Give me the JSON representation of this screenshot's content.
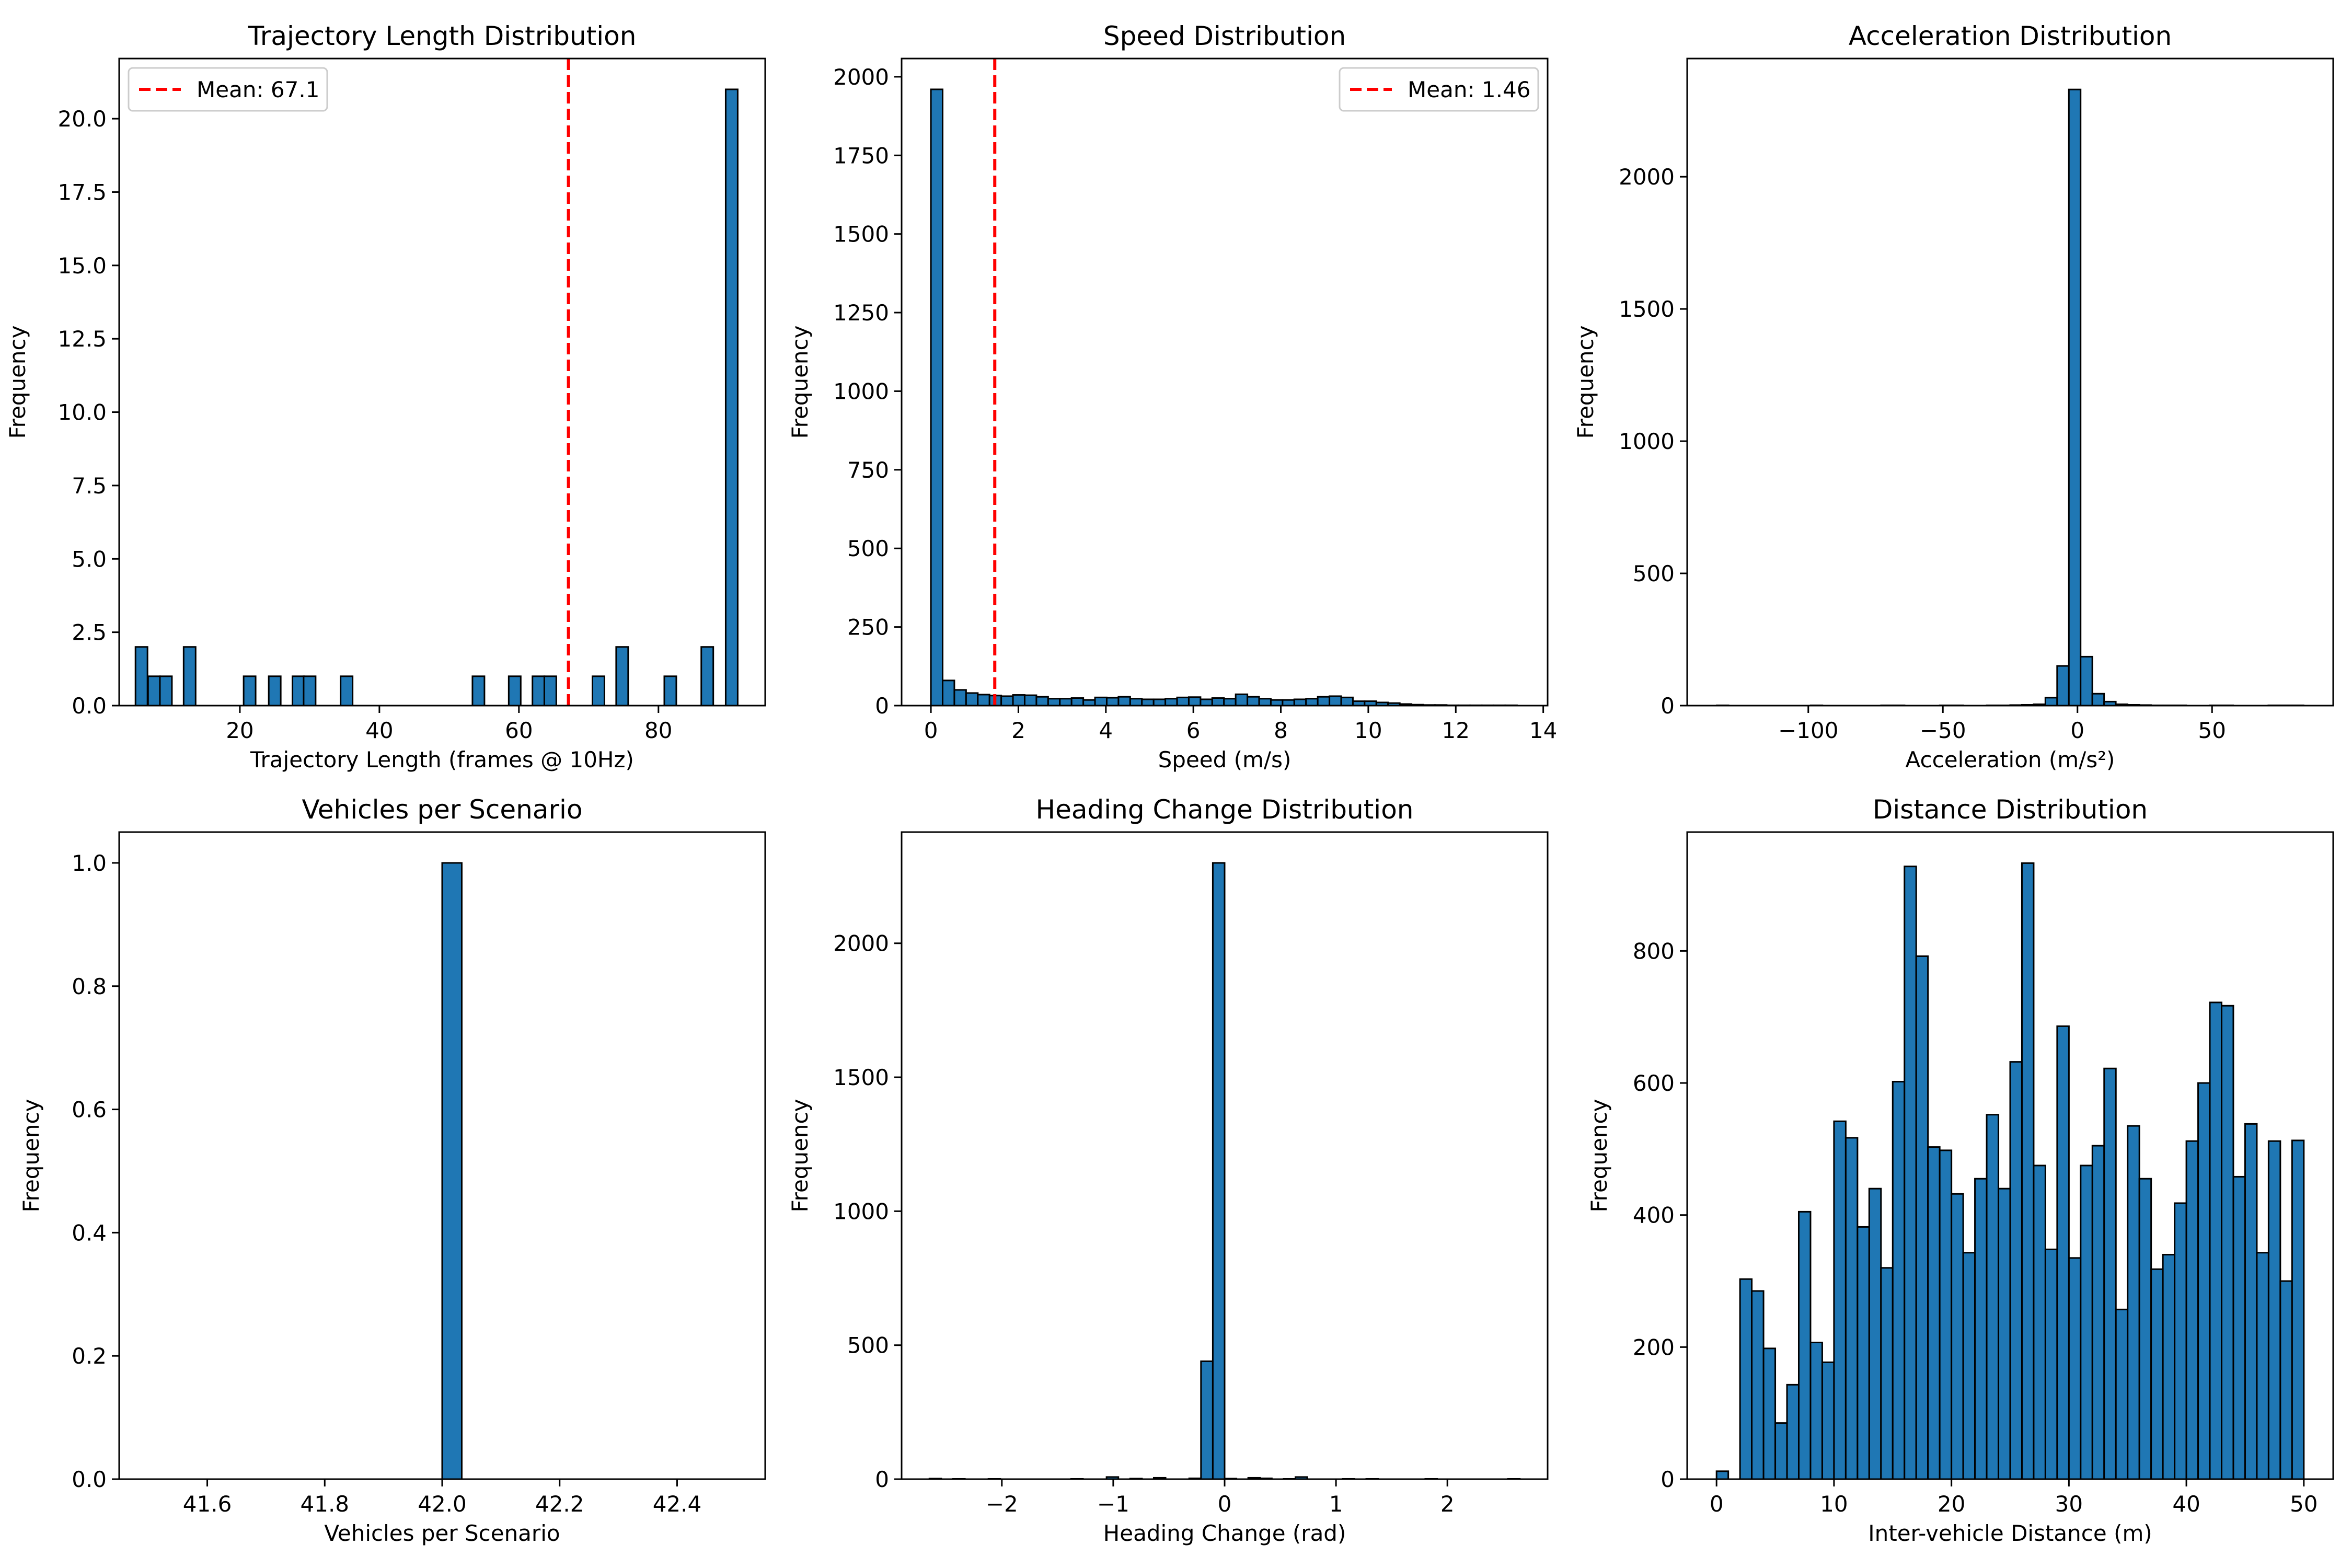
{
  "chart_data": [
    {
      "type": "bar",
      "title": "Trajectory Length Distribution",
      "xlabel": "Trajectory Length (frames @ 10Hz)",
      "ylabel": "Frequency",
      "xlim": [
        2.7,
        95.3
      ],
      "ylim": [
        0,
        22.05
      ],
      "xticks": [
        20,
        40,
        60,
        80
      ],
      "xtick_labels": [
        "20",
        "40",
        "60",
        "80"
      ],
      "yticks": [
        0,
        2.5,
        5,
        7.5,
        10,
        12.5,
        15,
        17.5,
        20
      ],
      "ytick_labels": [
        "0.0",
        "2.5",
        "5.0",
        "7.5",
        "10.0",
        "12.5",
        "15.0",
        "17.5",
        "20.0"
      ],
      "bar_width": 1.72,
      "bins": [
        [
          5.9,
          2
        ],
        [
          7.7,
          1
        ],
        [
          9.4,
          1
        ],
        [
          12.8,
          2
        ],
        [
          21.4,
          1
        ],
        [
          25.0,
          1
        ],
        [
          28.4,
          1
        ],
        [
          30.0,
          1
        ],
        [
          35.3,
          1
        ],
        [
          54.2,
          1
        ],
        [
          59.4,
          1
        ],
        [
          62.8,
          1
        ],
        [
          64.5,
          1
        ],
        [
          71.4,
          1
        ],
        [
          74.8,
          2
        ],
        [
          81.7,
          1
        ],
        [
          87.0,
          2
        ],
        [
          90.5,
          21
        ]
      ],
      "mean_line": {
        "x": 67.1,
        "label": "Mean: 67.1",
        "color": "#ff0000"
      },
      "legend": "top-left",
      "bar_color": "#1f77b4",
      "grid": false
    },
    {
      "type": "bar",
      "title": "Speed Distribution",
      "xlabel": "Speed (m/s)",
      "ylabel": "Frequency",
      "xlim": [
        -0.67,
        14.1
      ],
      "ylim": [
        0,
        2058
      ],
      "xticks": [
        0,
        2,
        4,
        6,
        8,
        10,
        12,
        14
      ],
      "xtick_labels": [
        "0",
        "2",
        "4",
        "6",
        "8",
        "10",
        "12",
        "14"
      ],
      "yticks": [
        0,
        250,
        500,
        750,
        1000,
        1250,
        1500,
        1750,
        2000
      ],
      "ytick_labels": [
        "0",
        "250",
        "500",
        "750",
        "1000",
        "1250",
        "1500",
        "1750",
        "2000"
      ],
      "bar_range": [
        0,
        13.4
      ],
      "counts": [
        1960,
        80,
        50,
        40,
        35,
        32,
        30,
        34,
        33,
        28,
        22,
        22,
        24,
        18,
        26,
        25,
        28,
        22,
        20,
        20,
        22,
        26,
        27,
        20,
        24,
        22,
        36,
        28,
        22,
        18,
        18,
        20,
        22,
        28,
        30,
        26,
        14,
        14,
        10,
        8,
        5,
        3,
        2,
        2,
        1,
        1,
        1,
        1,
        1,
        1
      ],
      "mean_line": {
        "x": 1.46,
        "label": "Mean: 1.46",
        "color": "#ff0000"
      },
      "legend": "top-right",
      "bar_color": "#1f77b4",
      "grid": false
    },
    {
      "type": "bar",
      "title": "Acceleration Distribution",
      "xlabel": "Acceleration (m/s²)",
      "ylabel": "Frequency",
      "xlim": [
        -145,
        95
      ],
      "ylim": [
        0,
        2447
      ],
      "xticks": [
        -100,
        -50,
        0,
        50
      ],
      "xtick_labels": [
        "−100",
        "−50",
        "0",
        "50"
      ],
      "yticks": [
        0,
        500,
        1000,
        1500,
        2000
      ],
      "ytick_labels": [
        "0",
        "500",
        "1000",
        "1500",
        "2000"
      ],
      "bar_range": [
        -134,
        84
      ],
      "counts": [
        1,
        0,
        0,
        0,
        0,
        0,
        0,
        0,
        1,
        0,
        0,
        0,
        0,
        0,
        1,
        1,
        0,
        0,
        0,
        1,
        1,
        0,
        0,
        1,
        1,
        2,
        3,
        5,
        30,
        150,
        2330,
        185,
        45,
        15,
        5,
        3,
        2,
        1,
        1,
        1,
        0,
        0,
        1,
        1,
        0,
        0,
        0,
        1,
        1,
        1
      ],
      "bar_color": "#1f77b4",
      "grid": false
    },
    {
      "type": "bar",
      "title": "Vehicles per Scenario",
      "xlabel": "Vehicles per Scenario",
      "ylabel": "Frequency",
      "xlim": [
        41.45,
        42.55
      ],
      "ylim": [
        0,
        1.05
      ],
      "xticks": [
        41.6,
        41.8,
        42.0,
        42.2,
        42.4
      ],
      "xtick_labels": [
        "41.6",
        "41.8",
        "42.0",
        "42.2",
        "42.4"
      ],
      "yticks": [
        0,
        0.2,
        0.4,
        0.6,
        0.8,
        1.0
      ],
      "ytick_labels": [
        "0.0",
        "0.2",
        "0.4",
        "0.6",
        "0.8",
        "1.0"
      ],
      "bar_range": [
        41.5,
        42.5
      ],
      "counts": [
        0,
        0,
        0,
        0,
        0,
        0,
        0,
        0,
        0,
        0,
        0,
        0,
        0,
        0,
        0,
        1,
        0,
        0,
        0,
        0,
        0,
        0,
        0,
        0,
        0,
        0,
        0,
        0,
        0,
        0
      ],
      "bar_color": "#1f77b4",
      "grid": false
    },
    {
      "type": "bar",
      "title": "Heading Change Distribution",
      "xlabel": "Heading Change (rad)",
      "ylabel": "Frequency",
      "xlim": [
        -2.9,
        2.9
      ],
      "ylim": [
        0,
        2415
      ],
      "xticks": [
        -2,
        -1,
        0,
        1,
        2
      ],
      "xtick_labels": [
        "−2",
        "−1",
        "0",
        "1",
        "2"
      ],
      "yticks": [
        0,
        500,
        1000,
        1500,
        2000
      ],
      "ytick_labels": [
        "0",
        "500",
        "1000",
        "1500",
        "2000"
      ],
      "bar_range": [
        -2.65,
        2.65
      ],
      "counts": [
        2,
        0,
        1,
        0,
        0,
        1,
        0,
        0,
        0,
        0,
        0,
        0,
        1,
        0,
        0,
        8,
        0,
        2,
        0,
        5,
        0,
        0,
        3,
        440,
        2300,
        2,
        0,
        5,
        3,
        0,
        1,
        8,
        0,
        0,
        0,
        1,
        0,
        1,
        0,
        0,
        0,
        0,
        1,
        0,
        0,
        0,
        0,
        0,
        0,
        1
      ],
      "bar_color": "#1f77b4",
      "grid": false
    },
    {
      "type": "bar",
      "title": "Distance Distribution",
      "xlabel": "Inter-vehicle Distance (m)",
      "ylabel": "Frequency",
      "xlim": [
        -2.5,
        52.5
      ],
      "ylim": [
        0,
        980
      ],
      "xticks": [
        0,
        10,
        20,
        30,
        40,
        50
      ],
      "xtick_labels": [
        "0",
        "10",
        "20",
        "30",
        "40",
        "50"
      ],
      "yticks": [
        0,
        200,
        400,
        600,
        800
      ],
      "ytick_labels": [
        "0",
        "200",
        "400",
        "600",
        "800"
      ],
      "bar_range": [
        0,
        50
      ],
      "counts": [
        12,
        0,
        303,
        285,
        198,
        85,
        143,
        405,
        207,
        177,
        542,
        517,
        382,
        440,
        320,
        602,
        928,
        792,
        503,
        498,
        432,
        343,
        455,
        552,
        440,
        632,
        933,
        475,
        348,
        686,
        335,
        475,
        505,
        622,
        257,
        535,
        455,
        318,
        340,
        418,
        512,
        600,
        722,
        717,
        458,
        538,
        343,
        512,
        300,
        513
      ],
      "bar_color": "#1f77b4",
      "grid": false
    }
  ]
}
